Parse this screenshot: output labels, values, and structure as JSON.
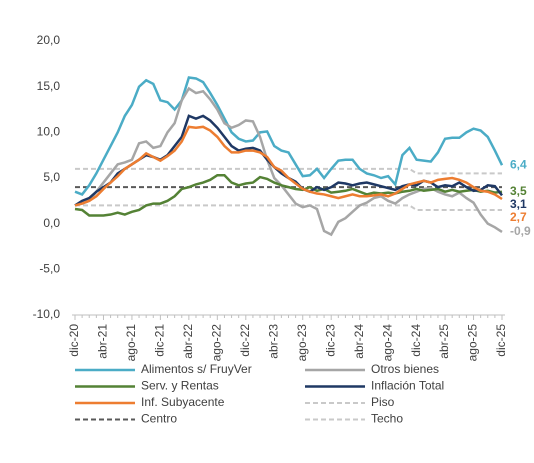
{
  "chart_data": {
    "type": "line",
    "categories": [
      "dic-20",
      null,
      null,
      null,
      "abr-21",
      null,
      null,
      null,
      "ago-21",
      null,
      null,
      null,
      "dic-21",
      null,
      null,
      null,
      "abr-22",
      null,
      null,
      null,
      "ago-22",
      null,
      null,
      null,
      "dic-22",
      null,
      null,
      null,
      "abr-23",
      null,
      null,
      null,
      "ago-23",
      null,
      null,
      null,
      "dic-23",
      null,
      null,
      null,
      "abr-24",
      null,
      null,
      null,
      "ago-24",
      null,
      null,
      null,
      "dic-24",
      null,
      null,
      null,
      "abr-25",
      null,
      null,
      null,
      "ago-25",
      null,
      null,
      null,
      "dic-25"
    ],
    "ylim": [
      -10,
      20
    ],
    "yticks": [
      {
        "value": -10,
        "label": "-10,0"
      },
      {
        "value": -5,
        "label": "-5,0"
      },
      {
        "value": 0,
        "label": "0,0"
      },
      {
        "value": 5,
        "label": "5,0"
      },
      {
        "value": 10,
        "label": "10,0"
      },
      {
        "value": 15,
        "label": "15,0"
      },
      {
        "value": 20,
        "label": "20,0"
      }
    ],
    "series": [
      {
        "name": "Alimentos  s/ FruyVer",
        "color": "#4bacc6",
        "dash": false,
        "values": [
          3.5,
          3.2,
          4.2,
          5.5,
          7.0,
          8.5,
          10.0,
          11.8,
          13.0,
          15.0,
          15.7,
          15.3,
          13.5,
          13.3,
          12.5,
          13.5,
          16.0,
          15.9,
          15.5,
          14.3,
          13.0,
          11.5,
          10.0,
          9.3,
          9.0,
          9.1,
          10.0,
          10.1,
          8.5,
          8.0,
          7.8,
          6.5,
          5.2,
          5.3,
          6.0,
          5.0,
          6.0,
          6.9,
          7.0,
          7.0,
          6.0,
          5.5,
          5.3,
          5.0,
          5.2,
          4.3,
          7.5,
          8.3,
          7.0,
          6.9,
          6.8,
          7.8,
          9.3,
          9.4,
          9.4,
          10.0,
          10.4,
          10.2,
          9.5,
          8.0,
          6.4
        ],
        "value_labels": [
          null,
          null,
          null,
          null,
          null,
          null,
          null,
          null,
          null,
          null,
          null,
          null,
          null,
          null,
          null,
          null,
          null,
          null,
          null,
          null,
          null,
          null,
          null,
          null,
          null,
          null,
          null,
          null,
          null,
          null,
          null,
          null,
          null,
          null,
          null,
          null,
          null,
          null,
          null,
          null,
          null,
          null,
          null,
          null,
          null,
          null,
          null,
          null,
          null,
          null,
          null,
          null,
          null,
          null,
          null,
          null,
          null,
          null,
          null,
          null,
          "6,4"
        ]
      },
      {
        "name": "Otros bienes",
        "color": "#a6a6a6",
        "dash": false,
        "values": [
          2.0,
          2.2,
          2.5,
          3.5,
          4.5,
          5.5,
          6.5,
          6.7,
          7.0,
          8.8,
          9.0,
          8.3,
          8.5,
          10.0,
          11.0,
          13.5,
          14.8,
          14.3,
          14.5,
          13.6,
          12.5,
          11.0,
          10.5,
          10.8,
          11.3,
          11.2,
          9.5,
          7.0,
          5.0,
          4.2,
          3.2,
          2.2,
          1.8,
          2.0,
          1.6,
          -0.8,
          -1.2,
          0.2,
          0.6,
          1.3,
          2.0,
          2.3,
          2.8,
          3.0,
          2.5,
          2.2,
          2.8,
          3.2,
          3.5,
          3.8,
          3.9,
          3.5,
          3.2,
          3.0,
          3.4,
          2.8,
          2.3,
          1.0,
          0.0,
          -0.4,
          -0.9
        ],
        "value_labels": [
          null,
          null,
          null,
          null,
          null,
          null,
          null,
          null,
          null,
          null,
          null,
          null,
          null,
          null,
          null,
          null,
          null,
          null,
          null,
          null,
          null,
          null,
          null,
          null,
          null,
          null,
          null,
          null,
          null,
          null,
          null,
          null,
          null,
          null,
          null,
          null,
          null,
          null,
          null,
          null,
          null,
          null,
          null,
          null,
          null,
          null,
          null,
          null,
          null,
          null,
          null,
          null,
          null,
          null,
          null,
          null,
          null,
          null,
          null,
          null,
          "-0,9"
        ]
      },
      {
        "name": "Serv. y Rentas",
        "color": "#548235",
        "dash": false,
        "values": [
          1.6,
          1.5,
          0.9,
          0.9,
          0.9,
          1.0,
          1.2,
          1.0,
          1.3,
          1.5,
          2.0,
          2.2,
          2.2,
          2.5,
          3.0,
          3.8,
          4.0,
          4.3,
          4.5,
          4.8,
          5.3,
          5.3,
          4.5,
          4.2,
          4.4,
          4.5,
          5.1,
          4.9,
          4.5,
          4.2,
          4.0,
          3.8,
          3.7,
          4.0,
          3.6,
          3.8,
          3.4,
          3.5,
          3.6,
          3.8,
          3.5,
          3.2,
          3.4,
          3.3,
          3.4,
          3.3,
          3.5,
          3.6,
          3.8,
          3.6,
          3.7,
          3.8,
          3.5,
          3.7,
          3.5,
          3.6,
          3.7,
          3.5,
          3.6,
          3.4,
          3.5
        ],
        "value_labels": [
          null,
          null,
          null,
          null,
          null,
          null,
          null,
          null,
          null,
          null,
          null,
          null,
          null,
          null,
          null,
          null,
          null,
          null,
          null,
          null,
          null,
          null,
          null,
          null,
          null,
          null,
          null,
          null,
          null,
          null,
          null,
          null,
          null,
          null,
          null,
          null,
          null,
          null,
          null,
          null,
          null,
          null,
          null,
          null,
          null,
          null,
          null,
          null,
          null,
          null,
          null,
          null,
          null,
          null,
          null,
          null,
          null,
          null,
          null,
          null,
          "3,5"
        ]
      },
      {
        "name": "Inflación Total",
        "color": "#1f3864",
        "dash": false,
        "values": [
          2.0,
          2.5,
          2.8,
          3.5,
          4.0,
          4.5,
          5.5,
          6.0,
          6.5,
          7.0,
          7.5,
          7.3,
          7.0,
          7.5,
          8.5,
          9.5,
          11.8,
          11.5,
          11.8,
          11.3,
          10.5,
          9.5,
          8.5,
          8.0,
          8.2,
          8.3,
          8.0,
          7.0,
          6.2,
          5.5,
          5.0,
          4.6,
          3.8,
          3.5,
          4.0,
          3.7,
          4.0,
          4.5,
          4.4,
          4.2,
          4.4,
          4.5,
          4.3,
          4.1,
          3.9,
          3.7,
          4.1,
          4.3,
          4.2,
          4.7,
          4.5,
          4.0,
          4.2,
          4.1,
          4.5,
          4.0,
          3.6,
          3.7,
          4.2,
          4.1,
          3.1
        ],
        "value_labels": [
          null,
          null,
          null,
          null,
          null,
          null,
          null,
          null,
          null,
          null,
          null,
          null,
          null,
          null,
          null,
          null,
          null,
          null,
          null,
          null,
          null,
          null,
          null,
          null,
          null,
          null,
          null,
          null,
          null,
          null,
          null,
          null,
          null,
          null,
          null,
          null,
          null,
          null,
          null,
          null,
          null,
          null,
          null,
          null,
          null,
          null,
          null,
          null,
          null,
          null,
          null,
          null,
          null,
          null,
          null,
          null,
          null,
          null,
          null,
          null,
          "3,1"
        ]
      },
      {
        "name": "Inf. Subyacente",
        "color": "#ed7d31",
        "dash": false,
        "values": [
          2.0,
          2.2,
          2.5,
          3.0,
          3.8,
          4.5,
          5.2,
          6.0,
          6.5,
          7.0,
          7.7,
          7.3,
          6.9,
          7.4,
          8.0,
          9.0,
          10.6,
          10.5,
          10.6,
          10.2,
          9.5,
          8.5,
          7.8,
          7.8,
          8.0,
          8.0,
          7.8,
          7.3,
          6.2,
          5.8,
          5.0,
          4.4,
          3.8,
          3.5,
          3.3,
          3.2,
          3.0,
          2.8,
          3.0,
          3.2,
          3.0,
          3.0,
          3.1,
          3.2,
          3.0,
          3.3,
          3.8,
          4.3,
          4.5,
          4.7,
          4.5,
          4.8,
          4.9,
          5.0,
          4.8,
          4.5,
          4.0,
          3.6,
          3.5,
          3.2,
          2.7
        ],
        "value_labels": [
          null,
          null,
          null,
          null,
          null,
          null,
          null,
          null,
          null,
          null,
          null,
          null,
          null,
          null,
          null,
          null,
          null,
          null,
          null,
          null,
          null,
          null,
          null,
          null,
          null,
          null,
          null,
          null,
          null,
          null,
          null,
          null,
          null,
          null,
          null,
          null,
          null,
          null,
          null,
          null,
          null,
          null,
          null,
          null,
          null,
          null,
          null,
          null,
          null,
          null,
          null,
          null,
          null,
          null,
          null,
          null,
          null,
          null,
          null,
          null,
          "2,7"
        ]
      },
      {
        "name": "Piso",
        "color": "#c9c9c9",
        "dash": true,
        "values": [
          2,
          2,
          2,
          2,
          2,
          2,
          2,
          2,
          2,
          2,
          2,
          2,
          2,
          2,
          2,
          2,
          2,
          2,
          2,
          2,
          2,
          2,
          2,
          2,
          2,
          2,
          2,
          2,
          2,
          2,
          2,
          2,
          2,
          2,
          2,
          2,
          2,
          2,
          2,
          2,
          2,
          2,
          2,
          2,
          2,
          2,
          2,
          2,
          1.5,
          1.5,
          1.5,
          1.5,
          1.5,
          1.5,
          1.5,
          1.5,
          1.5,
          1.5,
          1.5,
          1.5,
          1.5
        ]
      },
      {
        "name": "Centro",
        "color": "#595959",
        "dash": true,
        "values": [
          4,
          4,
          4,
          4,
          4,
          4,
          4,
          4,
          4,
          4,
          4,
          4,
          4,
          4,
          4,
          4,
          4,
          4,
          4,
          4,
          4,
          4,
          4,
          4,
          4,
          4,
          4,
          4,
          4,
          4,
          4,
          4,
          4,
          4,
          4,
          4,
          4,
          4,
          4,
          4,
          4,
          4,
          4,
          4,
          4,
          4,
          4,
          4,
          4,
          4,
          4,
          4,
          4,
          4,
          4,
          4,
          4,
          4,
          4,
          4,
          4
        ]
      },
      {
        "name": "Techo",
        "color": "#c9c9c9",
        "dash": true,
        "values": [
          6,
          6,
          6,
          6,
          6,
          6,
          6,
          6,
          6,
          6,
          6,
          6,
          6,
          6,
          6,
          6,
          6,
          6,
          6,
          6,
          6,
          6,
          6,
          6,
          6,
          6,
          6,
          6,
          6,
          6,
          6,
          6,
          6,
          6,
          6,
          6,
          6,
          6,
          6,
          6,
          6,
          6,
          6,
          6,
          6,
          6,
          6,
          6,
          5.5,
          5.5,
          5.5,
          5.5,
          5.5,
          5.5,
          5.5,
          5.5,
          5.5,
          5.5,
          5.5,
          5.5,
          5.5
        ]
      }
    ]
  }
}
